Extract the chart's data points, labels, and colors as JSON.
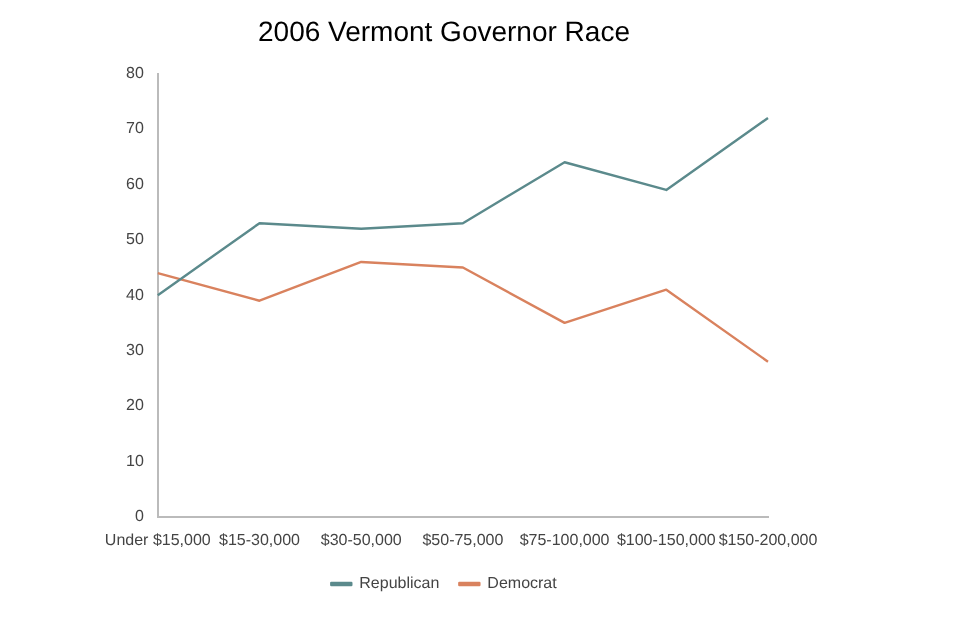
{
  "chart_data": {
    "type": "line",
    "title": "2006 Vermont Governor Race",
    "categories": [
      "Under $15,000",
      "$15-30,000",
      "$30-50,000",
      "$50-75,000",
      "$75-100,000",
      "$100-150,000",
      "$150-200,000"
    ],
    "series": [
      {
        "name": "Republican",
        "color": "#5b8a8c",
        "values": [
          40,
          53,
          52,
          53,
          64,
          59,
          72
        ]
      },
      {
        "name": "Democrat",
        "color": "#d9825e",
        "values": [
          44,
          39,
          46,
          45,
          35,
          41,
          28
        ]
      }
    ],
    "ylim": [
      0,
      80
    ],
    "yticks": [
      0,
      10,
      20,
      30,
      40,
      50,
      60,
      70,
      80
    ],
    "grid": false,
    "legend": "bottom",
    "marker": "none"
  }
}
